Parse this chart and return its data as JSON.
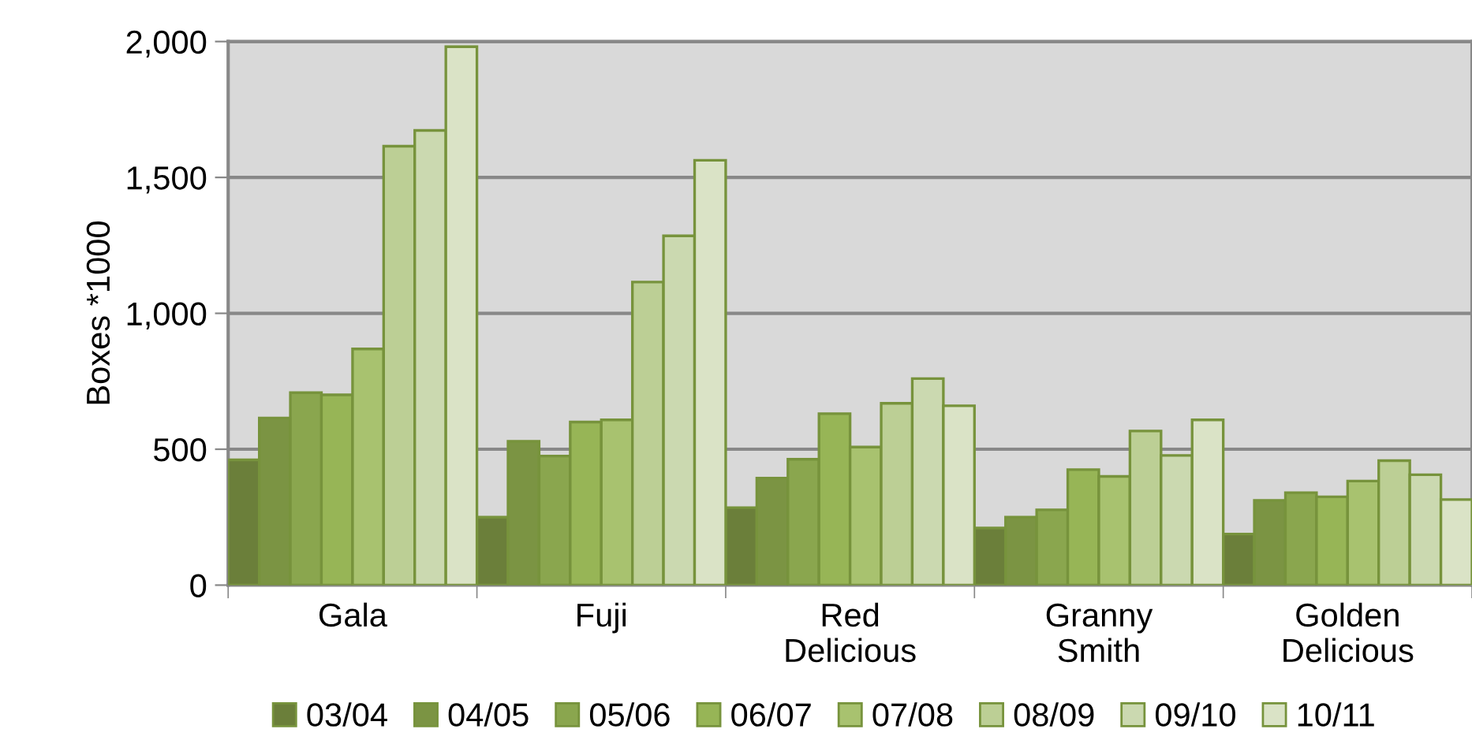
{
  "chart_data": {
    "type": "bar",
    "ylabel": "Boxes *1000",
    "categories": [
      "Gala",
      "Fuji",
      "Red\nDelicious",
      "Granny\nSmith",
      "Golden\nDelicious"
    ],
    "series": [
      {
        "name": "03/04",
        "color": "#6b7f3a",
        "values": [
          461,
          250,
          285,
          210,
          188
        ]
      },
      {
        "name": "04/05",
        "color": "#7b9443",
        "values": [
          615,
          529,
          394,
          250,
          312
        ]
      },
      {
        "name": "05/06",
        "color": "#8aa64e",
        "values": [
          708,
          475,
          463,
          277,
          340
        ]
      },
      {
        "name": "06/07",
        "color": "#97b556",
        "values": [
          700,
          600,
          631,
          425,
          325
        ]
      },
      {
        "name": "07/08",
        "color": "#a8c26f",
        "values": [
          869,
          608,
          508,
          400,
          383
        ]
      },
      {
        "name": "08/09",
        "color": "#bccf95",
        "values": [
          1615,
          1115,
          669,
          567,
          458
        ]
      },
      {
        "name": "09/10",
        "color": "#cbd9b0",
        "values": [
          1673,
          1285,
          760,
          477,
          406
        ]
      },
      {
        "name": "10/11",
        "color": "#dae3c6",
        "values": [
          1981,
          1563,
          660,
          608,
          315
        ]
      }
    ],
    "ylim": [
      0,
      2000
    ],
    "yticks": [
      0,
      {
        "value": 500,
        "label": "500"
      },
      {
        "value": 1000,
        "label": "1,000"
      },
      {
        "value": 1500,
        "label": "1,500"
      },
      {
        "value": 2000,
        "label": "2,000"
      }
    ],
    "grid": "y",
    "legend": "bottom"
  }
}
